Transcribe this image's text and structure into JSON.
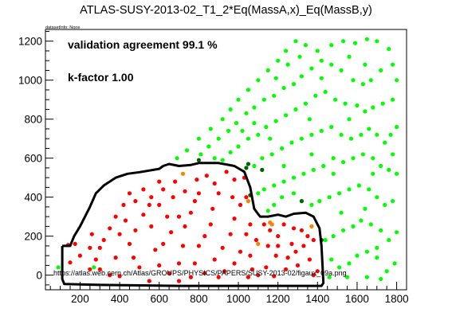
{
  "chart_data": {
    "type": "scatter",
    "title": "ATLAS-SUSY-2013-02_T1_2*Eq(MassA,x)_Eq(MassB,y)",
    "dataset_info": "datasetInfo: None",
    "annotations": {
      "agreement": "validation agreement 99.1 %",
      "kfactor": "k-factor 1.00",
      "url": "https://atlas.web.cern.ch/Atlas/GROUPS/PHYSICS/PAPERS/SUSY-2013-02/figaux_09a.png"
    },
    "xlim": [
      25,
      1850
    ],
    "ylim": [
      -75,
      1260
    ],
    "xticks": [
      200,
      400,
      600,
      800,
      1000,
      1200,
      1400,
      1600,
      1800
    ],
    "yticks": [
      0,
      200,
      400,
      600,
      800,
      1000,
      1200
    ],
    "xtick_labels": [
      "200",
      "400",
      "600",
      "800",
      "1000",
      "1200",
      "1400",
      "1600",
      "1800"
    ],
    "ytick_labels": [
      "0",
      "200",
      "400",
      "600",
      "800",
      "1000",
      "1200"
    ],
    "colors": {
      "excluded": "#ff0000",
      "allowed": "#00ff00",
      "excluded_border": "#ff8000",
      "allowed_border": "#006400",
      "contour": "#000000"
    },
    "contour": [
      [
        110,
        150
      ],
      [
        110,
        -20
      ],
      [
        120,
        -45
      ],
      [
        300,
        -50
      ],
      [
        700,
        -55
      ],
      [
        1000,
        -55
      ],
      [
        1200,
        -55
      ],
      [
        1420,
        -55
      ],
      [
        1430,
        -40
      ],
      [
        1420,
        150
      ],
      [
        1410,
        240
      ],
      [
        1380,
        300
      ],
      [
        1340,
        320
      ],
      [
        1280,
        315
      ],
      [
        1240,
        300
      ],
      [
        1200,
        310
      ],
      [
        1150,
        300
      ],
      [
        1110,
        300
      ],
      [
        1080,
        340
      ],
      [
        1060,
        450
      ],
      [
        1030,
        530
      ],
      [
        980,
        560
      ],
      [
        900,
        575
      ],
      [
        800,
        575
      ],
      [
        760,
        565
      ],
      [
        700,
        560
      ],
      [
        650,
        570
      ],
      [
        620,
        560
      ],
      [
        600,
        545
      ],
      [
        500,
        528
      ],
      [
        440,
        520
      ],
      [
        380,
        500
      ],
      [
        320,
        460
      ],
      [
        280,
        420
      ],
      [
        250,
        350
      ],
      [
        200,
        250
      ],
      [
        170,
        200
      ],
      [
        150,
        150
      ],
      [
        110,
        150
      ]
    ],
    "series": [
      {
        "name": "excluded",
        "points": [
          [
            140,
            155
          ],
          [
            175,
            160
          ],
          [
            150,
            65
          ],
          [
            200,
            100
          ],
          [
            250,
            140
          ],
          [
            280,
            80
          ],
          [
            300,
            30
          ],
          [
            350,
            0
          ],
          [
            250,
            30
          ],
          [
            320,
            180
          ],
          [
            350,
            240
          ],
          [
            380,
            300
          ],
          [
            400,
            210
          ],
          [
            430,
            280
          ],
          [
            450,
            160
          ],
          [
            470,
            90
          ],
          [
            500,
            40
          ],
          [
            400,
            -5
          ],
          [
            480,
            230
          ],
          [
            520,
            310
          ],
          [
            550,
            360
          ],
          [
            560,
            400
          ],
          [
            600,
            360
          ],
          [
            640,
            300
          ],
          [
            660,
            220
          ],
          [
            620,
            160
          ],
          [
            580,
            130
          ],
          [
            600,
            50
          ],
          [
            650,
            10
          ],
          [
            700,
            60
          ],
          [
            720,
            150
          ],
          [
            730,
            250
          ],
          [
            760,
            320
          ],
          [
            780,
            380
          ],
          [
            800,
            420
          ],
          [
            790,
            490
          ],
          [
            840,
            510
          ],
          [
            880,
            470
          ],
          [
            900,
            420
          ],
          [
            870,
            340
          ],
          [
            860,
            260
          ],
          [
            830,
            200
          ],
          [
            800,
            150
          ],
          [
            780,
            60
          ],
          [
            760,
            -10
          ],
          [
            830,
            10
          ],
          [
            880,
            80
          ],
          [
            920,
            140
          ],
          [
            960,
            210
          ],
          [
            980,
            290
          ],
          [
            1010,
            360
          ],
          [
            1040,
            400
          ],
          [
            1060,
            260
          ],
          [
            1040,
            210
          ],
          [
            1010,
            120
          ],
          [
            980,
            60
          ],
          [
            1060,
            100
          ],
          [
            1090,
            180
          ],
          [
            1130,
            260
          ],
          [
            1160,
            230
          ],
          [
            1200,
            200
          ],
          [
            1230,
            260
          ],
          [
            1280,
            240
          ],
          [
            1320,
            230
          ],
          [
            1350,
            200
          ],
          [
            1330,
            150
          ],
          [
            1290,
            120
          ],
          [
            1250,
            90
          ],
          [
            1190,
            100
          ],
          [
            1140,
            40
          ],
          [
            1100,
            0
          ],
          [
            1180,
            -5
          ],
          [
            1240,
            30
          ],
          [
            1300,
            50
          ],
          [
            1360,
            80
          ],
          [
            1380,
            0
          ],
          [
            1400,
            20
          ],
          [
            450,
            420
          ],
          [
            520,
            440
          ],
          [
            600,
            480
          ],
          [
            680,
            480
          ],
          [
            730,
            430
          ],
          [
            940,
            530
          ],
          [
            980,
            490
          ],
          [
            1030,
            500
          ],
          [
            700,
            -30
          ],
          [
            550,
            -30
          ],
          [
            900,
            -10
          ],
          [
            1050,
            -10
          ],
          [
            1270,
            160
          ],
          [
            1380,
            180
          ],
          [
            420,
            360
          ],
          [
            480,
            380
          ],
          [
            560,
            250
          ],
          [
            700,
            300
          ],
          [
            620,
            440
          ],
          [
            670,
            400
          ],
          [
            1150,
            150
          ],
          [
            1200,
            150
          ],
          [
            970,
            400
          ],
          [
            1070,
            30
          ],
          [
            930,
            20
          ],
          [
            380,
            90
          ],
          [
            300,
            140
          ],
          [
            260,
            210
          ]
        ]
      },
      {
        "name": "allowed",
        "points": [
          [
            90,
            40
          ],
          [
            270,
            40
          ],
          [
            690,
            600
          ],
          [
            740,
            640
          ],
          [
            800,
            700
          ],
          [
            860,
            750
          ],
          [
            920,
            800
          ],
          [
            960,
            850
          ],
          [
            1000,
            900
          ],
          [
            1050,
            950
          ],
          [
            1100,
            1000
          ],
          [
            1150,
            1050
          ],
          [
            1200,
            1100
          ],
          [
            1240,
            1150
          ],
          [
            1290,
            1200
          ],
          [
            1340,
            1180
          ],
          [
            1400,
            1150
          ],
          [
            1470,
            1180
          ],
          [
            1530,
            1200
          ],
          [
            1590,
            1190
          ],
          [
            1650,
            1210
          ],
          [
            1700,
            1200
          ],
          [
            1760,
            1160
          ],
          [
            1780,
            1080
          ],
          [
            1720,
            1050
          ],
          [
            1670,
            1000
          ],
          [
            1630,
            980
          ],
          [
            1580,
            1000
          ],
          [
            1520,
            1050
          ],
          [
            1470,
            1080
          ],
          [
            1420,
            1100
          ],
          [
            1370,
            1060
          ],
          [
            1320,
            1020
          ],
          [
            1280,
            980
          ],
          [
            1230,
            960
          ],
          [
            1180,
            920
          ],
          [
            1130,
            900
          ],
          [
            1080,
            860
          ],
          [
            1040,
            830
          ],
          [
            990,
            780
          ],
          [
            950,
            740
          ],
          [
            900,
            700
          ],
          [
            850,
            660
          ],
          [
            810,
            620
          ],
          [
            1800,
            1000
          ],
          [
            1780,
            900
          ],
          [
            1730,
            880
          ],
          [
            1680,
            860
          ],
          [
            1640,
            840
          ],
          [
            1600,
            870
          ],
          [
            1540,
            880
          ],
          [
            1490,
            900
          ],
          [
            1440,
            940
          ],
          [
            1390,
            920
          ],
          [
            1340,
            880
          ],
          [
            1290,
            850
          ],
          [
            1240,
            820
          ],
          [
            1190,
            790
          ],
          [
            1140,
            760
          ],
          [
            1100,
            720
          ],
          [
            1050,
            700
          ],
          [
            1000,
            660
          ],
          [
            960,
            630
          ],
          [
            920,
            590
          ],
          [
            880,
            600
          ],
          [
            1800,
            760
          ],
          [
            1770,
            720
          ],
          [
            1740,
            680
          ],
          [
            1700,
            720
          ],
          [
            1660,
            750
          ],
          [
            1620,
            720
          ],
          [
            1570,
            700
          ],
          [
            1520,
            720
          ],
          [
            1470,
            760
          ],
          [
            1420,
            740
          ],
          [
            1370,
            720
          ],
          [
            1320,
            700
          ],
          [
            1270,
            680
          ],
          [
            1220,
            650
          ],
          [
            1170,
            620
          ],
          [
            1120,
            600
          ],
          [
            1080,
            560
          ],
          [
            1800,
            520
          ],
          [
            1760,
            540
          ],
          [
            1720,
            560
          ],
          [
            1680,
            600
          ],
          [
            1630,
            620
          ],
          [
            1580,
            600
          ],
          [
            1530,
            580
          ],
          [
            1480,
            600
          ],
          [
            1430,
            560
          ],
          [
            1380,
            540
          ],
          [
            1330,
            520
          ],
          [
            1280,
            500
          ],
          [
            1230,
            480
          ],
          [
            1180,
            460
          ],
          [
            1130,
            440
          ],
          [
            1100,
            420
          ],
          [
            1780,
            380
          ],
          [
            1740,
            360
          ],
          [
            1700,
            400
          ],
          [
            1660,
            440
          ],
          [
            1610,
            460
          ],
          [
            1560,
            440
          ],
          [
            1510,
            420
          ],
          [
            1460,
            400
          ],
          [
            1410,
            380
          ],
          [
            1370,
            360
          ],
          [
            1320,
            380
          ],
          [
            1280,
            420
          ],
          [
            1220,
            400
          ],
          [
            1180,
            360
          ],
          [
            1150,
            330
          ],
          [
            1800,
            220
          ],
          [
            1760,
            180
          ],
          [
            1720,
            230
          ],
          [
            1670,
            260
          ],
          [
            1620,
            280
          ],
          [
            1580,
            250
          ],
          [
            1530,
            230
          ],
          [
            1480,
            200
          ],
          [
            1440,
            180
          ],
          [
            1790,
            60
          ],
          [
            1750,
            20
          ],
          [
            1700,
            90
          ],
          [
            1650,
            120
          ],
          [
            1600,
            100
          ],
          [
            1560,
            60
          ],
          [
            1510,
            40
          ],
          [
            1470,
            80
          ],
          [
            1460,
            -10
          ],
          [
            1550,
            -10
          ],
          [
            1650,
            -10
          ],
          [
            1720,
            -20
          ],
          [
            1250,
            1080
          ],
          [
            1190,
            1010
          ],
          [
            1310,
            1120
          ],
          [
            1420,
            1010
          ],
          [
            1560,
            1120
          ],
          [
            1640,
            1080
          ],
          [
            1230,
            560
          ],
          [
            1370,
            620
          ],
          [
            1520,
            320
          ],
          [
            1640,
            340
          ],
          [
            1780,
            620
          ],
          [
            1700,
            140
          ],
          [
            1680,
            520
          ],
          [
            1560,
            800
          ],
          [
            1360,
            800
          ],
          [
            1480,
            520
          ],
          [
            1160,
            700
          ],
          [
            1080,
            780
          ],
          [
            1020,
            740
          ]
        ]
      },
      {
        "name": "excluded_border",
        "points": [
          [
            720,
            520
          ],
          [
            1050,
            380
          ],
          [
            1100,
            160
          ],
          [
            1170,
            260
          ],
          [
            1160,
            270
          ],
          [
            1370,
            250
          ]
        ]
      },
      {
        "name": "allowed_border",
        "points": [
          [
            800,
            590
          ],
          [
            1040,
            550
          ],
          [
            1050,
            570
          ],
          [
            1120,
            540
          ],
          [
            1060,
            410
          ],
          [
            1320,
            380
          ],
          [
            1420,
            180
          ]
        ]
      }
    ]
  }
}
